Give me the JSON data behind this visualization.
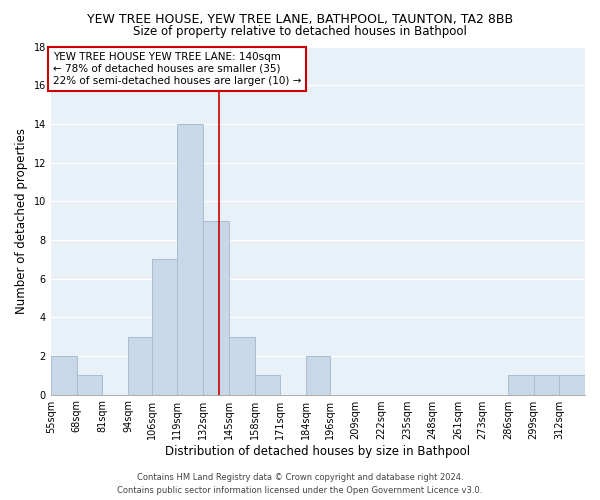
{
  "title": "YEW TREE HOUSE, YEW TREE LANE, BATHPOOL, TAUNTON, TA2 8BB",
  "subtitle": "Size of property relative to detached houses in Bathpool",
  "xlabel": "Distribution of detached houses by size in Bathpool",
  "ylabel": "Number of detached properties",
  "bin_labels": [
    "55sqm",
    "68sqm",
    "81sqm",
    "94sqm",
    "106sqm",
    "119sqm",
    "132sqm",
    "145sqm",
    "158sqm",
    "171sqm",
    "184sqm",
    "196sqm",
    "209sqm",
    "222sqm",
    "235sqm",
    "248sqm",
    "261sqm",
    "273sqm",
    "286sqm",
    "299sqm",
    "312sqm"
  ],
  "bin_edges": [
    55,
    68,
    81,
    94,
    106,
    119,
    132,
    145,
    158,
    171,
    184,
    196,
    209,
    222,
    235,
    248,
    261,
    273,
    286,
    299,
    312,
    325
  ],
  "counts": [
    2,
    1,
    0,
    3,
    7,
    14,
    9,
    3,
    1,
    0,
    2,
    0,
    0,
    0,
    0,
    0,
    0,
    0,
    1,
    1,
    1
  ],
  "bar_color": "#c8d8e8",
  "bar_edge_color": "#a8bece",
  "marker_line_value": 140,
  "ylim": [
    0,
    18
  ],
  "yticks": [
    0,
    2,
    4,
    6,
    8,
    10,
    12,
    14,
    16,
    18
  ],
  "annotation_box_text_line1": "YEW TREE HOUSE YEW TREE LANE: 140sqm",
  "annotation_box_text_line2": "← 78% of detached houses are smaller (35)",
  "annotation_box_text_line3": "22% of semi-detached houses are larger (10) →",
  "footer_line1": "Contains HM Land Registry data © Crown copyright and database right 2024.",
  "footer_line2": "Contains public sector information licensed under the Open Government Licence v3.0.",
  "background_color": "#ffffff",
  "plot_bg_color": "#e8f0f8",
  "grid_color": "#ffffff",
  "title_fontsize": 9,
  "subtitle_fontsize": 8.5,
  "axis_label_fontsize": 8.5,
  "tick_fontsize": 7,
  "annotation_fontsize": 7.5,
  "footer_fontsize": 6
}
